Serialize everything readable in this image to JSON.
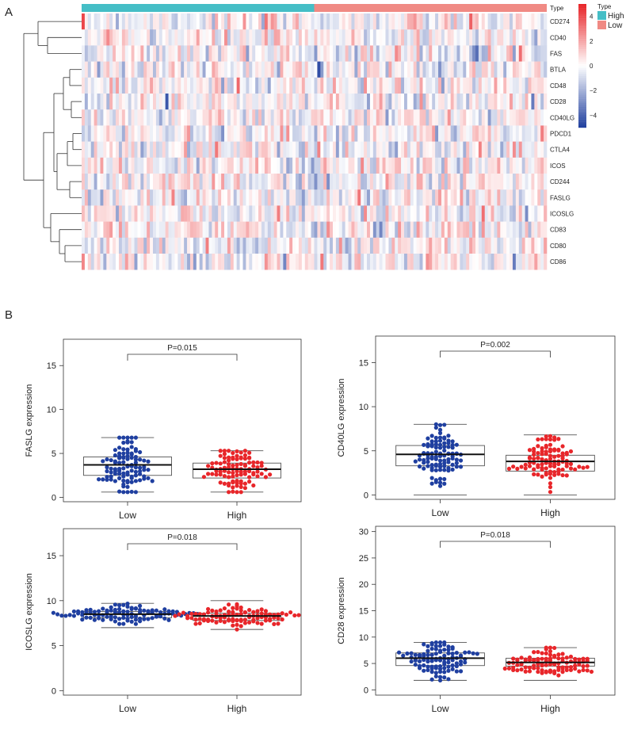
{
  "panel_labels": {
    "a": "A",
    "b": "B"
  },
  "chart_data": [
    {
      "type": "heatmap",
      "title": "",
      "rows": [
        "CD274",
        "CD40",
        "FAS",
        "BTLA",
        "CD48",
        "CD28",
        "CD40LG",
        "PDCD1",
        "CTLA4",
        "ICOS",
        "CD244",
        "FASLG",
        "ICOSLG",
        "CD83",
        "CD80",
        "CD86"
      ],
      "column_annotation": {
        "label": "Type",
        "legend_title": "Type",
        "groups": [
          {
            "name": "High",
            "color": "#45BEC6",
            "n_columns": 75
          },
          {
            "name": "Low",
            "color": "#F08A84",
            "n_columns": 75
          }
        ]
      },
      "color_scale": {
        "min": -5,
        "max": 5,
        "low_color": "#2342A0",
        "mid_color": "#FFFFFF",
        "high_color": "#E8262A",
        "ticks": [
          "4",
          "2",
          "0",
          "−2",
          "−4"
        ]
      },
      "values_note": "z-scored expression per gene, range approx -5 to 5"
    },
    {
      "type": "box",
      "ylabel": "FASLG expression",
      "categories": [
        "Low",
        "High"
      ],
      "ylim": [
        -0.5,
        18
      ],
      "yticks": [
        "0",
        "5",
        "10",
        "15"
      ],
      "pvalue": "P=0.015",
      "boxes": [
        {
          "group": "Low",
          "color": "#1F3FA0",
          "whisker_low": 0.6,
          "q1": 2.5,
          "median": 3.7,
          "q3": 4.6,
          "whisker_high": 6.8,
          "n": 100
        },
        {
          "group": "High",
          "color": "#E8262A",
          "whisker_low": 0.6,
          "q1": 2.2,
          "median": 3.2,
          "q3": 3.9,
          "whisker_high": 5.3,
          "n": 100
        }
      ]
    },
    {
      "type": "box",
      "ylabel": "CD40LG expression",
      "categories": [
        "Low",
        "High"
      ],
      "ylim": [
        -0.5,
        18
      ],
      "yticks": [
        "0",
        "5",
        "10",
        "15"
      ],
      "pvalue": "P=0.002",
      "boxes": [
        {
          "group": "Low",
          "color": "#1F3FA0",
          "whisker_low": 0,
          "q1": 3.3,
          "median": 4.6,
          "q3": 5.6,
          "whisker_high": 8,
          "n": 100
        },
        {
          "group": "High",
          "color": "#E8262A",
          "whisker_low": 0,
          "q1": 2.7,
          "median": 3.8,
          "q3": 4.5,
          "whisker_high": 6.8,
          "n": 100
        }
      ]
    },
    {
      "type": "box",
      "ylabel": "ICOSLG expression",
      "categories": [
        "Low",
        "High"
      ],
      "ylim": [
        -0.5,
        18
      ],
      "yticks": [
        "0",
        "5",
        "10",
        "15"
      ],
      "pvalue": "P=0.018",
      "boxes": [
        {
          "group": "Low",
          "color": "#1F3FA0",
          "whisker_low": 7.0,
          "q1": 8.1,
          "median": 8.5,
          "q3": 8.8,
          "whisker_high": 9.7,
          "n": 100
        },
        {
          "group": "High",
          "color": "#E8262A",
          "whisker_low": 6.8,
          "q1": 7.8,
          "median": 8.3,
          "q3": 8.6,
          "whisker_high": 10,
          "n": 100
        }
      ]
    },
    {
      "type": "box",
      "ylabel": "CD28 expression",
      "categories": [
        "Low",
        "High"
      ],
      "ylim": [
        -1,
        31
      ],
      "yticks": [
        "0",
        "5",
        "10",
        "15",
        "20",
        "25",
        "30"
      ],
      "pvalue": "P=0.018",
      "boxes": [
        {
          "group": "Low",
          "color": "#1F3FA0",
          "whisker_low": 1.8,
          "q1": 4.6,
          "median": 6.0,
          "q3": 7.0,
          "whisker_high": 9,
          "n": 100
        },
        {
          "group": "High",
          "color": "#E8262A",
          "whisker_low": 1.8,
          "q1": 4.5,
          "median": 5.2,
          "q3": 6.0,
          "whisker_high": 8,
          "n": 100
        }
      ]
    }
  ]
}
